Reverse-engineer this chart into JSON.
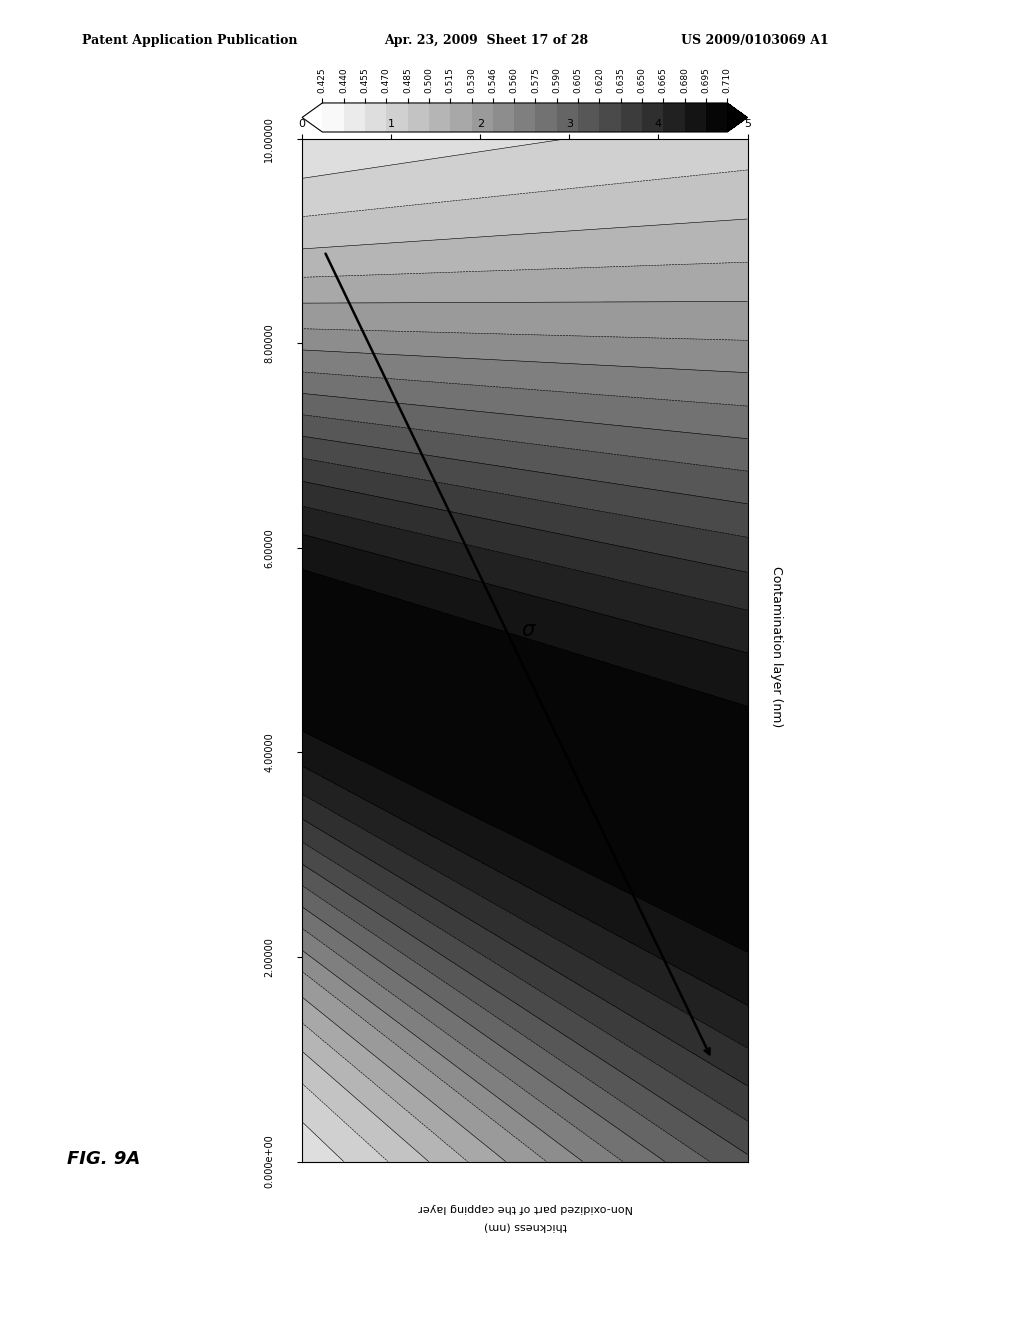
{
  "x_label_line1": "Non-oxidized part of the capping layer",
  "x_label_line2": "thickness (nm)",
  "y_label": "Contamination layer (nm)",
  "colorbar_levels": [
    0.425,
    0.44,
    0.455,
    0.47,
    0.485,
    0.5,
    0.515,
    0.53,
    0.546,
    0.56,
    0.575,
    0.59,
    0.605,
    0.62,
    0.635,
    0.65,
    0.665,
    0.68,
    0.695,
    0.71
  ],
  "fig_label": "FIG. 9A",
  "header_left": "Patent Application Publication",
  "header_mid": "Apr. 23, 2009  Sheet 17 of 28",
  "header_right": "US 2009/0103069 A1",
  "cont_ticks": [
    0,
    1,
    2,
    3,
    4,
    5
  ],
  "cap_ticks": [
    0,
    2,
    4,
    6,
    8,
    10
  ],
  "cap_tick_labels": [
    "0.000e+00",
    "2.00000",
    "4.00000",
    "6.00000",
    "8.00000",
    "10.00000"
  ]
}
